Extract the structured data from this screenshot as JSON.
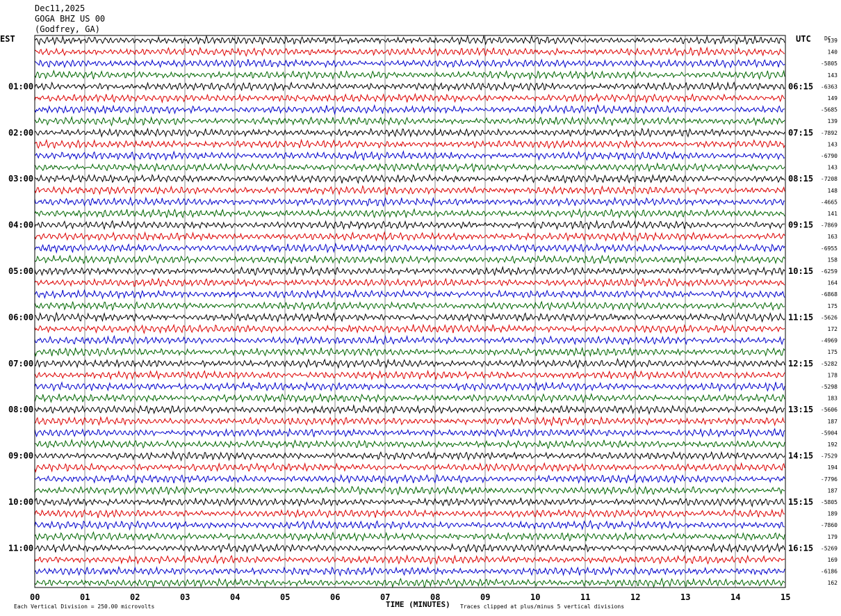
{
  "header": {
    "date": "Dec11,2025",
    "station": "GOGA BHZ US 00",
    "location": "(Godfrey, GA)"
  },
  "chart_data": {
    "type": "line",
    "title": "",
    "left_axis_label": "EST",
    "right_axis_label": "UTC",
    "dc_label": "DC",
    "xlabel": "TIME (MINUTES)",
    "x_ticks": [
      "00",
      "01",
      "02",
      "03",
      "04",
      "05",
      "06",
      "07",
      "08",
      "09",
      "10",
      "11",
      "12",
      "13",
      "14",
      "15"
    ],
    "xlim": [
      0,
      15
    ],
    "trace_colors": [
      "#000000",
      "#dd0000",
      "#0000cc",
      "#006600"
    ],
    "traces_per_hour": 4,
    "num_traces": 48,
    "est_labels": [
      "01:00",
      "02:00",
      "03:00",
      "04:00",
      "05:00",
      "06:00",
      "07:00",
      "08:00",
      "09:00",
      "10:00",
      "11:00"
    ],
    "utc_labels": [
      "06:15",
      "07:15",
      "08:15",
      "09:15",
      "10:15",
      "11:15",
      "12:15",
      "13:15",
      "14:15",
      "15:15",
      "16:15"
    ],
    "dc_offsets": [
      "139",
      "140",
      "-5805",
      "143",
      "-6363",
      "149",
      "-5685",
      "139",
      "-7892",
      "143",
      "-6790",
      "143",
      "-7208",
      "148",
      "-4665",
      "141",
      "-7869",
      "163",
      "-6955",
      "158",
      "-6259",
      "164",
      "-6868",
      "175",
      "-5626",
      "172",
      "-4969",
      "175",
      "-5282",
      "178",
      "-5298",
      "183",
      "-5606",
      "187",
      "-5904",
      "192",
      "-7529",
      "194",
      "-7796",
      "187",
      "-5805",
      "189",
      "-7860",
      "179",
      "-5269",
      "169",
      "-6186",
      "162"
    ],
    "footer_left": "Each Vertical Division =  250.00 microvolts",
    "footer_right": "Traces clipped at plus/minus 5 vertical divisions"
  }
}
